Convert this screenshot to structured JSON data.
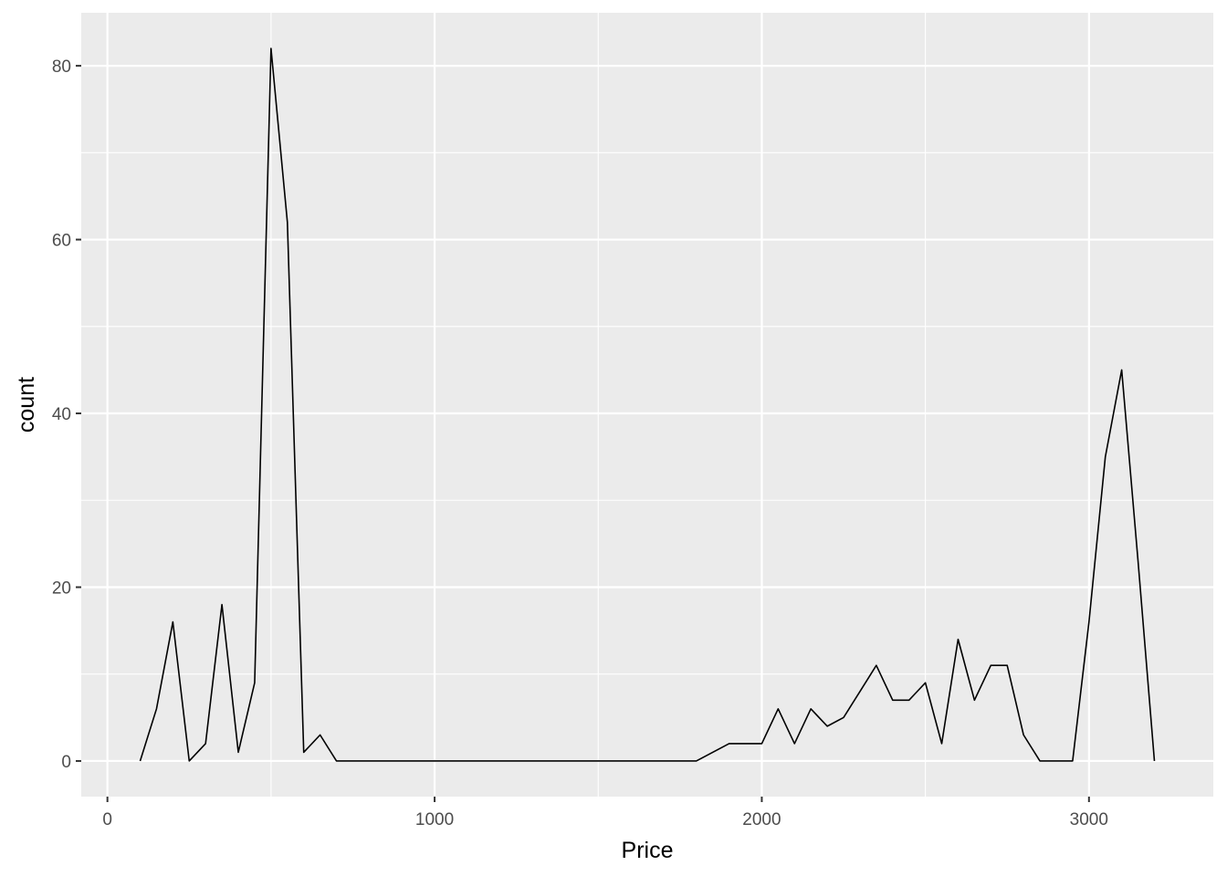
{
  "chart_data": {
    "type": "line",
    "title": "",
    "xlabel": "Price",
    "ylabel": "count",
    "xlim": [
      -80,
      3380
    ],
    "ylim": [
      -4.1,
      86.1
    ],
    "x_ticks": [
      0,
      1000,
      2000,
      3000
    ],
    "x_tick_labels": [
      "0",
      "1000",
      "2000",
      "3000"
    ],
    "y_ticks": [
      0,
      20,
      40,
      60,
      80
    ],
    "y_tick_labels": [
      "0",
      "20",
      "40",
      "60",
      "80"
    ],
    "x_minor_ticks": [
      500,
      1500,
      2500
    ],
    "y_minor_ticks": [
      10,
      30,
      50,
      70
    ],
    "grid": true,
    "legend": "none",
    "colors": {
      "panel": "#ebebeb",
      "grid": "#ffffff",
      "line": "#000000"
    },
    "series": [
      {
        "x": [
          100,
          150,
          200,
          250,
          300,
          350,
          400,
          450,
          500,
          550,
          600,
          650,
          700,
          750,
          800,
          850,
          900,
          950,
          1000,
          1050,
          1100,
          1150,
          1200,
          1250,
          1300,
          1350,
          1400,
          1450,
          1500,
          1550,
          1600,
          1650,
          1700,
          1750,
          1800,
          1850,
          1900,
          1950,
          2000,
          2050,
          2100,
          2150,
          2200,
          2250,
          2300,
          2350,
          2400,
          2450,
          2500,
          2550,
          2600,
          2650,
          2700,
          2750,
          2800,
          2850,
          2900,
          2950,
          3000,
          3050,
          3100,
          3150,
          3200
        ],
        "values": [
          0,
          6,
          16,
          0,
          2,
          18,
          1,
          9,
          82,
          62,
          1,
          3,
          0,
          0,
          0,
          0,
          0,
          0,
          0,
          0,
          0,
          0,
          0,
          0,
          0,
          0,
          0,
          0,
          0,
          0,
          0,
          0,
          0,
          0,
          0,
          1,
          2,
          2,
          2,
          6,
          2,
          6,
          4,
          5,
          8,
          11,
          7,
          7,
          9,
          2,
          14,
          7,
          11,
          11,
          3,
          0,
          0,
          0,
          16,
          35,
          45,
          23,
          0
        ]
      }
    ]
  }
}
